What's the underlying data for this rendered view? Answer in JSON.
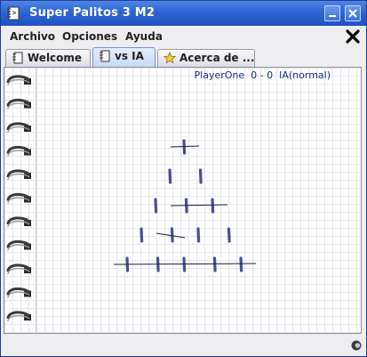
{
  "window": {
    "title": "Super Palitos 3 M2"
  },
  "menubar": {
    "items": [
      "Archivo",
      "Opciones",
      "Ayuda"
    ]
  },
  "tabs": [
    {
      "label": "Welcome",
      "icon": "notebook-icon",
      "active": false
    },
    {
      "label": "vs IA",
      "icon": "notebook-icon",
      "active": true
    },
    {
      "label": "Acerca de ...",
      "icon": "star-icon",
      "active": false
    }
  ],
  "game": {
    "score_text": "PlayerOne  0 - 0  IA(normal)",
    "rows": [
      {
        "sticks": 1,
        "crossed": [
          1
        ]
      },
      {
        "sticks": 2,
        "crossed": []
      },
      {
        "sticks": 3,
        "crossed": [
          2,
          3
        ]
      },
      {
        "sticks": 4,
        "crossed": [
          2
        ]
      },
      {
        "sticks": 5,
        "crossed": [
          1,
          2,
          3,
          4,
          5
        ]
      }
    ],
    "stick_color": "#4a4e98",
    "line_color": "#1c1c3a"
  },
  "colors": {
    "titlebar": "#2e64d4",
    "accent": "#1a2f86"
  }
}
